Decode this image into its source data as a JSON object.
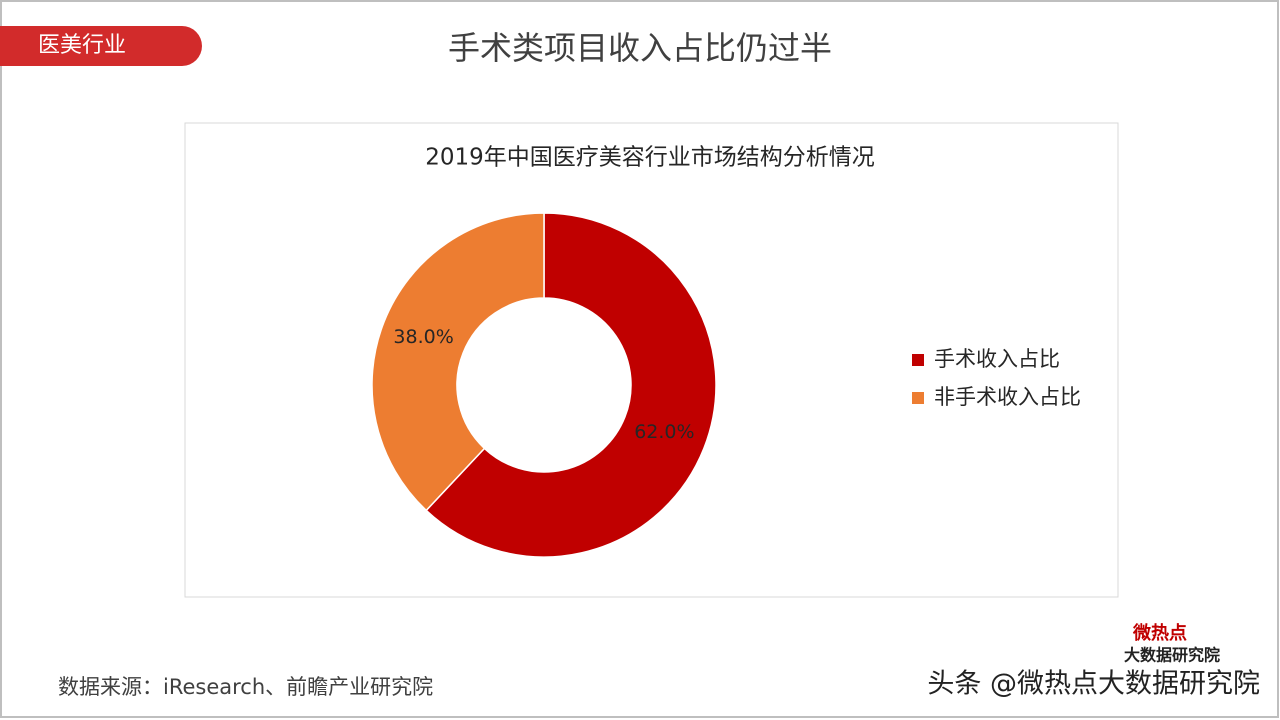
{
  "slide": {
    "tag": "医美行业",
    "title": "手术类项目收入占比仍过半",
    "source": "数据来源：iResearch、前瞻产业研究院",
    "logo_top": "微热点",
    "logo_bottom": "大数据研究院",
    "watermark": "头条 @微热点大数据研究院"
  },
  "chart_data": {
    "type": "donut",
    "title": "2019年中国医疗美容行业市场结构分析情况",
    "categories": [
      "手术收入占比",
      "非手术收入占比"
    ],
    "values": [
      62,
      38
    ],
    "value_labels": [
      "62.0%",
      "38.0%"
    ],
    "colors": [
      "#c00000",
      "#ed7d31"
    ],
    "legend": "right"
  }
}
